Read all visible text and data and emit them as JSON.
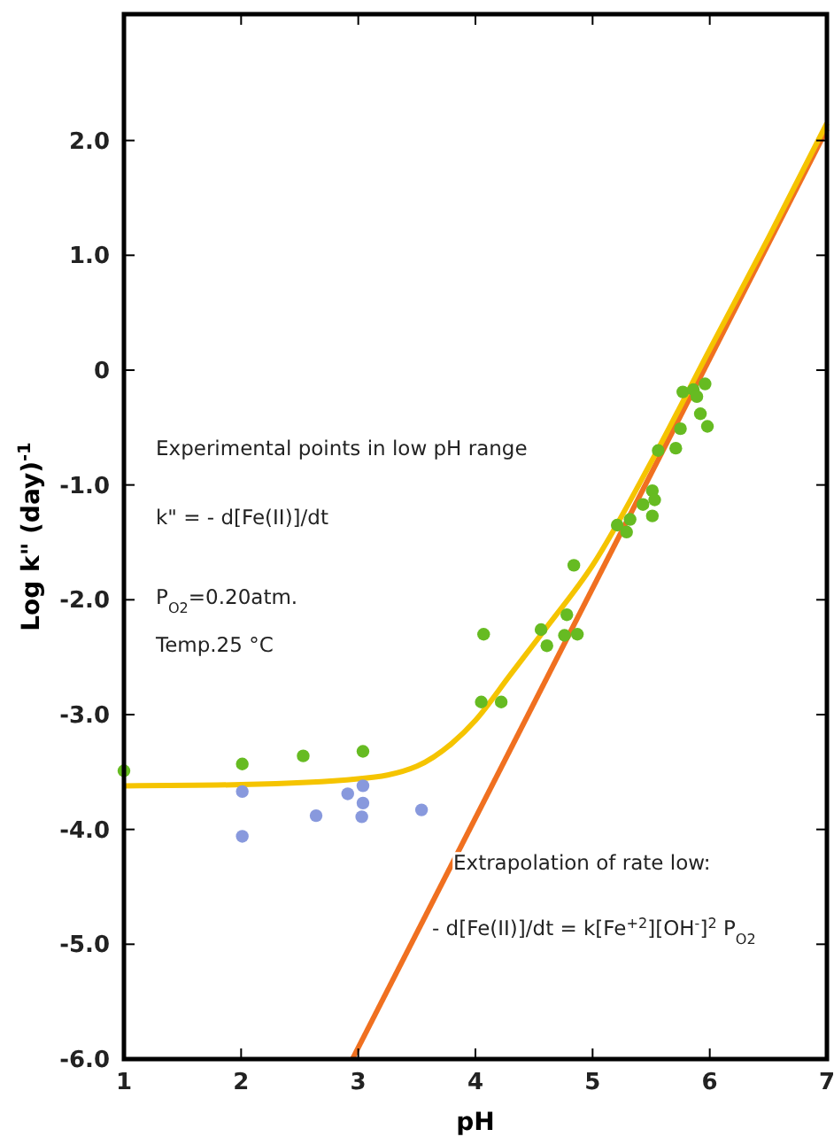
{
  "chart_data": {
    "type": "scatter",
    "xlabel": "pH",
    "ylabel": "Log  k\" (day)$^{-1}$",
    "xlim": [
      1,
      7
    ],
    "xticks": [
      1,
      2,
      3,
      4,
      5,
      6,
      7
    ],
    "ylim": [
      -6,
      3.1
    ],
    "yticks": [
      {
        "value": -6,
        "label": "-6.0"
      },
      {
        "value": -5,
        "label": "-5.0"
      },
      {
        "value": -4,
        "label": "-4.0"
      },
      {
        "value": -3,
        "label": "-3.0"
      },
      {
        "value": -2,
        "label": "-2.0"
      },
      {
        "value": -1,
        "label": "-1.0"
      },
      0,
      {
        "value": 1,
        "label": "1.0"
      },
      {
        "value": 2,
        "label": "2.0"
      }
    ],
    "grid": false,
    "series": [
      {
        "type": "line",
        "marker": "none",
        "color": "#f07020",
        "x": [
          2.95,
          7
        ],
        "values": [
          -6,
          2.1
        ]
      },
      {
        "type": "line",
        "marker": "none",
        "color": "#f5c400",
        "x": [
          1,
          2,
          3,
          3.5,
          3.8,
          4,
          4.3,
          4.6,
          5,
          5.5,
          6,
          6.5,
          7
        ],
        "values": [
          -3.62,
          -3.61,
          -3.56,
          -3.45,
          -3.25,
          -3.05,
          -2.65,
          -2.25,
          -1.7,
          -0.8,
          0.18,
          1.15,
          2.15
        ]
      },
      {
        "marker": "circle",
        "color": "#8899dd",
        "x": [
          2.01,
          2.01,
          2.64,
          2.91,
          3.04,
          3.04,
          3.03,
          3.54
        ],
        "values": [
          -3.67,
          -4.06,
          -3.88,
          -3.69,
          -3.62,
          -3.77,
          -3.89,
          -3.83
        ]
      },
      {
        "marker": "circle",
        "color": "#66bb22",
        "x": [
          1.0,
          2.01,
          2.53,
          3.04,
          4.05,
          4.22,
          4.07,
          4.56,
          4.61,
          4.78,
          4.76,
          4.87,
          4.84,
          5.21,
          5.29,
          5.32,
          5.43,
          5.51,
          5.53,
          5.51,
          5.56,
          5.71,
          5.75,
          5.77,
          5.86,
          5.89,
          5.96,
          5.92,
          5.98
        ],
        "values": [
          -3.49,
          -3.43,
          -3.36,
          -3.32,
          -2.89,
          -2.89,
          -2.3,
          -2.26,
          -2.4,
          -2.13,
          -2.31,
          -2.3,
          -1.7,
          -1.35,
          -1.41,
          -1.3,
          -1.17,
          -1.05,
          -1.13,
          -1.27,
          -0.7,
          -0.68,
          -0.51,
          -0.19,
          -0.17,
          -0.23,
          -0.12,
          -0.38,
          -0.49
        ]
      }
    ],
    "annotations": [
      "Experimental points in low pH range",
      "k\" = - d[Fe(II)]/dt",
      "P$_{O2}$=0.20atm.",
      "Temp.25 °C",
      "Extrapolation of rate low:",
      "- d[Fe(II)]/dt = k[Fe$^{+2}$][OH$^{-}$]$^{2}$ P$_{O2}$"
    ]
  }
}
